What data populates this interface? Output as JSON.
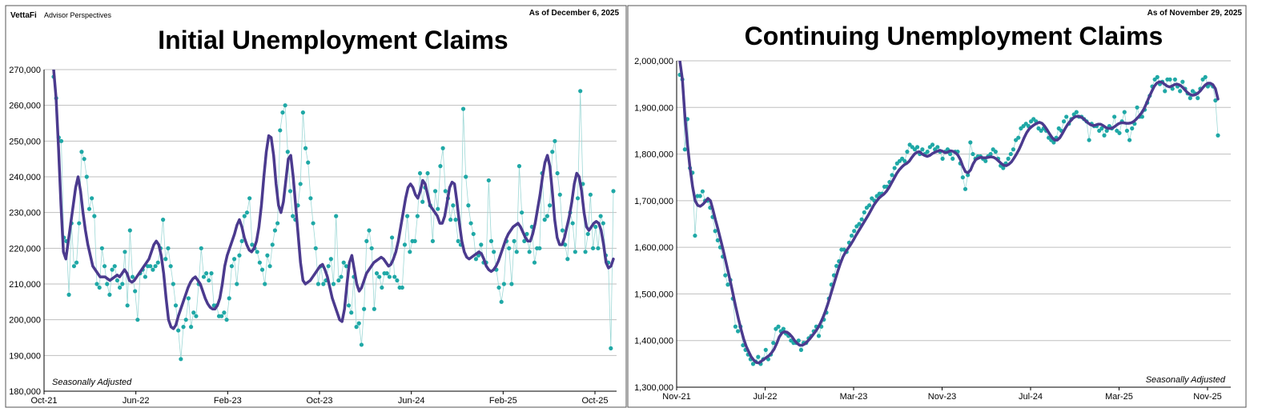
{
  "branding": {
    "logo": "VettaFi",
    "tagline": "Advisor Perspectives"
  },
  "colors": {
    "avg_line": "#4B3A8E",
    "points": "#1FA8A6",
    "thin_line": "#9ED8D6",
    "grid": "#BFBFBF"
  },
  "chart_data": [
    {
      "type": "line",
      "title": "Initial Unemployment Claims",
      "as_of": "As of December 6, 2025",
      "note": "Seasonally Adjusted",
      "ylim": [
        180000,
        270000
      ],
      "y_ticks": [
        "180,000",
        "190,000",
        "200,000",
        "210,000",
        "220,000",
        "230,000",
        "240,000",
        "250,000",
        "260,000",
        "270,000"
      ],
      "x_ticks": [
        "Oct-21",
        "Jun-22",
        "Feb-23",
        "Oct-23",
        "Jun-24",
        "Feb-25",
        "Oct-25"
      ],
      "grid": true,
      "series": [
        {
          "values": [
            268000,
            262000,
            251000,
            250000,
            223000,
            222000,
            207000,
            227000,
            215000,
            216000,
            227000,
            247000,
            245000,
            240000,
            231000,
            234000,
            229000,
            210000,
            209000,
            220000,
            215000,
            210000,
            207000,
            214000,
            215000,
            211000,
            209000,
            210000,
            219000,
            204000,
            225000,
            212000,
            208000,
            200000,
            213000,
            214000,
            212000,
            215000,
            215000,
            214000,
            215000,
            216000,
            220000,
            228000,
            217000,
            220000,
            215000,
            210000,
            204000,
            197000,
            189000,
            198000,
            200000,
            206000,
            198000,
            202000,
            201000,
            210000,
            220000,
            212000,
            213000,
            211000,
            213000,
            204000,
            204000,
            201000,
            201000,
            202000,
            200000,
            206000,
            215000,
            217000,
            210000,
            218000,
            222000,
            229000,
            230000,
            234000,
            221000,
            220000,
            219000,
            216000,
            214000,
            210000,
            218000,
            215000,
            221000,
            225000,
            227000,
            253000,
            258000,
            260000,
            247000,
            236000,
            229000,
            228000,
            232000,
            238000,
            258000,
            248000,
            244000,
            234000,
            227000,
            220000,
            210000,
            215000,
            210000,
            211000,
            215000,
            217000,
            210000,
            229000,
            211000,
            212000,
            216000,
            215000,
            204000,
            202000,
            212000,
            198000,
            199000,
            193000,
            203000,
            222000,
            225000,
            220000,
            203000,
            213000,
            212000,
            209000,
            213000,
            213000,
            212000,
            223000,
            212000,
            211000,
            209000,
            209000,
            221000,
            229000,
            219000,
            222000,
            222000,
            229000,
            241000,
            233000,
            237000,
            241000,
            232000,
            222000,
            236000,
            231000,
            243000,
            248000,
            236000,
            234000,
            228000,
            232000,
            228000,
            222000,
            221000,
            259000,
            240000,
            232000,
            227000,
            224000,
            217000,
            218000,
            221000,
            216000,
            216000,
            239000,
            222000,
            219000,
            214000,
            209000,
            205000,
            210000,
            222000,
            220000,
            210000,
            222000,
            219000,
            243000,
            230000,
            222000,
            224000,
            219000,
            226000,
            216000,
            220000,
            220000,
            241000,
            228000,
            229000,
            232000,
            247000,
            250000,
            241000,
            235000,
            225000,
            221000,
            217000,
            230000,
            227000,
            219000,
            234000,
            264000,
            238000,
            219000,
            224000,
            235000,
            220000,
            226000,
            220000,
            229000,
            227000,
            218000,
            216000,
            192000,
            236000
          ]
        },
        {
          "name": "",
          "values": [
            270000,
            262000,
            248000,
            232000,
            219000,
            217000,
            222000,
            227000,
            232000,
            237000,
            240000,
            236000,
            230000,
            225000,
            221000,
            218000,
            215000,
            214000,
            213000,
            212000,
            212000,
            212000,
            211500,
            211000,
            211500,
            212000,
            212500,
            212000,
            213000,
            214000,
            213000,
            211000,
            210500,
            211000,
            212000,
            213000,
            214000,
            215000,
            216000,
            217000,
            219000,
            221000,
            222000,
            221000,
            218000,
            213000,
            206000,
            200000,
            198000,
            197500,
            198500,
            201000,
            203000,
            205000,
            207000,
            209000,
            210500,
            211500,
            212000,
            211000,
            210000,
            208000,
            206000,
            204500,
            203500,
            203000,
            203000,
            204000,
            206000,
            210000,
            215000,
            218000,
            220000,
            222000,
            224000,
            226500,
            228000,
            226000,
            223000,
            221000,
            219500,
            219000,
            220000,
            222000,
            226000,
            232000,
            240000,
            247000,
            251500,
            251000,
            246000,
            238000,
            232000,
            230000,
            233000,
            239000,
            245000,
            246000,
            240000,
            232000,
            224000,
            216000,
            211000,
            210000,
            210500,
            211000,
            212000,
            213000,
            214000,
            215000,
            215500,
            214000,
            212000,
            209000,
            206000,
            204000,
            202000,
            200000,
            199500,
            203000,
            210000,
            216000,
            218000,
            214000,
            210000,
            208000,
            209000,
            211000,
            213000,
            214000,
            215000,
            216000,
            216500,
            217000,
            217500,
            217000,
            216000,
            215000,
            215500,
            217000,
            219000,
            222000,
            226000,
            230000,
            234000,
            237000,
            238000,
            237000,
            235000,
            234000,
            236000,
            239000,
            238000,
            235000,
            232000,
            231000,
            230000,
            229000,
            227000,
            227000,
            229000,
            233000,
            237000,
            238500,
            238000,
            233000,
            227000,
            222000,
            219000,
            217500,
            217000,
            217500,
            218000,
            218500,
            219000,
            218500,
            217000,
            215000,
            214000,
            213500,
            214000,
            215000,
            216500,
            218500,
            220500,
            222500,
            224000,
            225000,
            226000,
            226500,
            227000,
            226000,
            224500,
            223000,
            222000,
            222000,
            224000,
            227000,
            231000,
            235000,
            240000,
            244000,
            246000,
            243000,
            236000,
            228000,
            223000,
            221000,
            221000,
            223000,
            226000,
            229000,
            233000,
            238000,
            241000,
            240000,
            236000,
            230000,
            226000,
            225000,
            226000,
            227000,
            227500,
            227000,
            225000,
            221000,
            216000,
            214500,
            215000,
            217000
          ]
        }
      ]
    },
    {
      "type": "line",
      "title": "Continuing Unemployment Claims",
      "as_of": "As of November 29, 2025",
      "note": "Seasonally Adjusted",
      "ylim": [
        1300000,
        2000000
      ],
      "y_ticks": [
        "1,300,000",
        "1,400,000",
        "1,500,000",
        "1,600,000",
        "1,700,000",
        "1,800,000",
        "1,900,000",
        "2,000,000"
      ],
      "x_ticks": [
        "Nov-21",
        "Jul-22",
        "Mar-23",
        "Nov-23",
        "Jul-24",
        "Mar-25",
        "Nov-25"
      ],
      "grid": true,
      "series": [
        {
          "values": [
            1970000,
            1960000,
            1810000,
            1875000,
            1770000,
            1760000,
            1625000,
            1710000,
            1710000,
            1720000,
            1700000,
            1700000,
            1685000,
            1665000,
            1635000,
            1615000,
            1600000,
            1580000,
            1540000,
            1520000,
            1530000,
            1490000,
            1430000,
            1420000,
            1430000,
            1390000,
            1380000,
            1370000,
            1360000,
            1350000,
            1355000,
            1365000,
            1350000,
            1360000,
            1380000,
            1360000,
            1370000,
            1395000,
            1425000,
            1430000,
            1420000,
            1425000,
            1415000,
            1410000,
            1400000,
            1395000,
            1395000,
            1400000,
            1380000,
            1395000,
            1395000,
            1405000,
            1410000,
            1420000,
            1430000,
            1410000,
            1430000,
            1445000,
            1460000,
            1490000,
            1520000,
            1540000,
            1560000,
            1570000,
            1595000,
            1595000,
            1590000,
            1610000,
            1625000,
            1635000,
            1645000,
            1650000,
            1660000,
            1675000,
            1685000,
            1690000,
            1705000,
            1700000,
            1710000,
            1715000,
            1715000,
            1730000,
            1730000,
            1740000,
            1755000,
            1770000,
            1780000,
            1785000,
            1790000,
            1785000,
            1805000,
            1820000,
            1815000,
            1810000,
            1815000,
            1800000,
            1810000,
            1800000,
            1805000,
            1815000,
            1820000,
            1810000,
            1815000,
            1805000,
            1790000,
            1805000,
            1810000,
            1800000,
            1790000,
            1805000,
            1805000,
            1780000,
            1750000,
            1725000,
            1755000,
            1825000,
            1800000,
            1790000,
            1795000,
            1795000,
            1790000,
            1785000,
            1795000,
            1800000,
            1810000,
            1805000,
            1790000,
            1775000,
            1770000,
            1780000,
            1790000,
            1800000,
            1810000,
            1830000,
            1835000,
            1855000,
            1860000,
            1865000,
            1860000,
            1870000,
            1875000,
            1870000,
            1855000,
            1850000,
            1855000,
            1850000,
            1835000,
            1830000,
            1825000,
            1835000,
            1855000,
            1850000,
            1870000,
            1880000,
            1865000,
            1875000,
            1885000,
            1890000,
            1880000,
            1880000,
            1875000,
            1870000,
            1830000,
            1865000,
            1860000,
            1860000,
            1850000,
            1855000,
            1840000,
            1850000,
            1860000,
            1855000,
            1880000,
            1850000,
            1845000,
            1870000,
            1890000,
            1850000,
            1830000,
            1855000,
            1865000,
            1900000,
            1880000,
            1880000,
            1895000,
            1910000,
            1925000,
            1945000,
            1960000,
            1965000,
            1950000,
            1955000,
            1935000,
            1960000,
            1960000,
            1940000,
            1960000,
            1945000,
            1935000,
            1955000,
            1940000,
            1930000,
            1920000,
            1935000,
            1930000,
            1920000,
            1940000,
            1960000,
            1965000,
            1945000,
            1950000,
            1945000,
            1915000,
            1840000
          ]
        },
        {
          "name": "",
          "values": [
            2000000,
            1960000,
            1880000,
            1820000,
            1770000,
            1730000,
            1700000,
            1690000,
            1688000,
            1692000,
            1698000,
            1705000,
            1700000,
            1680000,
            1658000,
            1638000,
            1616000,
            1594000,
            1570000,
            1546000,
            1522000,
            1496000,
            1470000,
            1446000,
            1424000,
            1404000,
            1388000,
            1376000,
            1365000,
            1358000,
            1353000,
            1352000,
            1356000,
            1360000,
            1364000,
            1368000,
            1374000,
            1382000,
            1394000,
            1408000,
            1416000,
            1419000,
            1418000,
            1414000,
            1408000,
            1400000,
            1394000,
            1390000,
            1390000,
            1393000,
            1398000,
            1404000,
            1411000,
            1418000,
            1426000,
            1436000,
            1448000,
            1462000,
            1478000,
            1496000,
            1514000,
            1532000,
            1550000,
            1566000,
            1580000,
            1590000,
            1598000,
            1606000,
            1615000,
            1625000,
            1634000,
            1643000,
            1652000,
            1661000,
            1670000,
            1680000,
            1690000,
            1698000,
            1705000,
            1710000,
            1714000,
            1720000,
            1728000,
            1738000,
            1748000,
            1758000,
            1766000,
            1772000,
            1777000,
            1780000,
            1785000,
            1793000,
            1800000,
            1804000,
            1805000,
            1800000,
            1797000,
            1795000,
            1797000,
            1801000,
            1804000,
            1806000,
            1808000,
            1806000,
            1803000,
            1804000,
            1807000,
            1806000,
            1803000,
            1798000,
            1788000,
            1773000,
            1762000,
            1760000,
            1766000,
            1779000,
            1788000,
            1791000,
            1793000,
            1792000,
            1792000,
            1793000,
            1794000,
            1793000,
            1790000,
            1785000,
            1780000,
            1776000,
            1775000,
            1778000,
            1783000,
            1791000,
            1800000,
            1810000,
            1822000,
            1835000,
            1846000,
            1854000,
            1859000,
            1863000,
            1866000,
            1868000,
            1866000,
            1860000,
            1852000,
            1843000,
            1835000,
            1830000,
            1830000,
            1835000,
            1844000,
            1854000,
            1863000,
            1870000,
            1876000,
            1880000,
            1881000,
            1880000,
            1877000,
            1872000,
            1867000,
            1863000,
            1861000,
            1862000,
            1864000,
            1864000,
            1861000,
            1857000,
            1855000,
            1855000,
            1857000,
            1861000,
            1865000,
            1867000,
            1867000,
            1866000,
            1866000,
            1867000,
            1870000,
            1875000,
            1881000,
            1888000,
            1897000,
            1909000,
            1922000,
            1934000,
            1945000,
            1952000,
            1955000,
            1954000,
            1950000,
            1946000,
            1944000,
            1946000,
            1949000,
            1950000,
            1948000,
            1944000,
            1938000,
            1932000,
            1928000,
            1926000,
            1927000,
            1930000,
            1935000,
            1942000,
            1948000,
            1952000,
            1952000,
            1949000,
            1940000,
            1918000
          ]
        }
      ]
    }
  ]
}
